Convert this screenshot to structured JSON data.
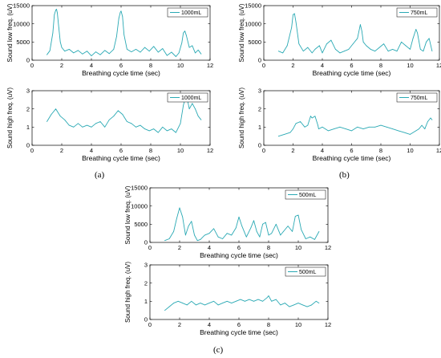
{
  "colors": {
    "series": "#2aa9b4",
    "axis": "#000000",
    "legend_border": "#000000"
  },
  "panel_labels": [
    "(a)",
    "(b)",
    "(c)"
  ],
  "chart_data": [
    {
      "type": "line",
      "panel": "a",
      "row": "low",
      "xlabel": "Breathing cycle time (sec)",
      "ylabel": "Sound low freq. (uV)",
      "xlim": [
        0,
        12
      ],
      "ylim": [
        0,
        15000
      ],
      "xticks": [
        0,
        2,
        4,
        6,
        8,
        10,
        12
      ],
      "yticks": [
        0,
        5000,
        10000,
        15000
      ],
      "legend": "top-right",
      "series": [
        {
          "name": "1000mL",
          "x": [
            1.0,
            1.2,
            1.4,
            1.5,
            1.6,
            1.65,
            1.7,
            1.8,
            1.9,
            2.0,
            2.2,
            2.5,
            2.8,
            3.1,
            3.4,
            3.7,
            4.0,
            4.3,
            4.6,
            4.9,
            5.2,
            5.5,
            5.7,
            5.85,
            5.95,
            6.0,
            6.1,
            6.2,
            6.4,
            6.7,
            7.0,
            7.3,
            7.6,
            7.9,
            8.2,
            8.5,
            8.8,
            9.1,
            9.4,
            9.7,
            9.9,
            10.1,
            10.2,
            10.3,
            10.4,
            10.6,
            10.8,
            11.0,
            11.2,
            11.4
          ],
          "y": [
            1500,
            2600,
            7500,
            12500,
            13800,
            14000,
            13000,
            9000,
            5000,
            3500,
            2500,
            3000,
            2000,
            2700,
            1700,
            2500,
            1200,
            2300,
            1500,
            2700,
            1800,
            3000,
            6500,
            11500,
            13200,
            13500,
            12000,
            7000,
            3000,
            2300,
            3000,
            2200,
            3500,
            2500,
            3800,
            2200,
            3200,
            1300,
            2200,
            1000,
            2000,
            4800,
            7500,
            8000,
            6800,
            3500,
            4000,
            2000,
            2800,
            1700
          ]
        }
      ]
    },
    {
      "type": "line",
      "panel": "a",
      "row": "high",
      "xlabel": "Breathing cycle time (sec)",
      "ylabel": "Sound high freq. (uV)",
      "xlim": [
        0,
        12
      ],
      "ylim": [
        0,
        3
      ],
      "xticks": [
        0,
        2,
        4,
        6,
        8,
        10,
        12
      ],
      "yticks": [
        0,
        1,
        2,
        3
      ],
      "legend": "top-right",
      "series": [
        {
          "name": "1000mL",
          "x": [
            1.0,
            1.3,
            1.6,
            1.9,
            2.2,
            2.5,
            2.8,
            3.1,
            3.4,
            3.7,
            4.0,
            4.3,
            4.6,
            4.9,
            5.2,
            5.5,
            5.8,
            6.1,
            6.4,
            6.7,
            7.0,
            7.3,
            7.6,
            7.9,
            8.2,
            8.5,
            8.8,
            9.1,
            9.4,
            9.7,
            10.0,
            10.2,
            10.4,
            10.6,
            10.8,
            11.0,
            11.2,
            11.4
          ],
          "y": [
            1.3,
            1.7,
            2.0,
            1.6,
            1.4,
            1.1,
            1.0,
            1.2,
            1.0,
            1.1,
            1.0,
            1.2,
            1.3,
            1.0,
            1.4,
            1.6,
            1.9,
            1.7,
            1.3,
            1.2,
            1.0,
            1.1,
            0.9,
            0.8,
            0.9,
            0.7,
            1.0,
            0.8,
            0.9,
            0.7,
            1.2,
            2.2,
            2.8,
            2.0,
            2.3,
            2.0,
            1.6,
            1.4
          ]
        }
      ]
    },
    {
      "type": "line",
      "panel": "b",
      "row": "low",
      "xlabel": "Breathing cycle time (sec)",
      "ylabel": "Sound low freq. (uV)",
      "xlim": [
        0,
        12
      ],
      "ylim": [
        0,
        15000
      ],
      "xticks": [
        0,
        2,
        4,
        6,
        8,
        10,
        12
      ],
      "yticks": [
        0,
        5000,
        10000,
        15000
      ],
      "legend": "top-right",
      "series": [
        {
          "name": "750mL",
          "x": [
            1.0,
            1.3,
            1.6,
            1.9,
            2.0,
            2.1,
            2.2,
            2.4,
            2.7,
            3.0,
            3.3,
            3.5,
            3.8,
            4.0,
            4.3,
            4.6,
            4.9,
            5.2,
            5.5,
            5.8,
            6.1,
            6.4,
            6.6,
            6.7,
            6.8,
            7.0,
            7.3,
            7.6,
            7.9,
            8.2,
            8.5,
            8.8,
            9.1,
            9.4,
            9.7,
            10.0,
            10.2,
            10.4,
            10.5,
            10.7,
            10.9,
            11.1,
            11.3,
            11.5
          ],
          "y": [
            2500,
            2000,
            4000,
            9000,
            12500,
            12800,
            10500,
            4500,
            2500,
            3500,
            2000,
            3000,
            4000,
            2000,
            4500,
            5500,
            3000,
            2000,
            2500,
            3000,
            4500,
            6000,
            9800,
            8000,
            5000,
            4000,
            3000,
            2500,
            3500,
            4500,
            2500,
            3000,
            2500,
            5000,
            4000,
            3000,
            6000,
            8500,
            7500,
            3000,
            2500,
            5000,
            6000,
            2500
          ]
        }
      ]
    },
    {
      "type": "line",
      "panel": "b",
      "row": "high",
      "xlabel": "Breathing cycle time (sec)",
      "ylabel": "Sound high freq. (uV)",
      "xlim": [
        0,
        12
      ],
      "ylim": [
        0,
        3
      ],
      "xticks": [
        0,
        2,
        4,
        6,
        8,
        10,
        12
      ],
      "yticks": [
        0,
        1,
        2,
        3
      ],
      "legend": "top-right",
      "series": [
        {
          "name": "750mL",
          "x": [
            1.0,
            1.4,
            1.8,
            2.0,
            2.2,
            2.5,
            2.8,
            3.0,
            3.2,
            3.3,
            3.5,
            3.7,
            3.75,
            4.0,
            4.4,
            4.8,
            5.2,
            5.6,
            6.0,
            6.4,
            6.8,
            7.2,
            7.6,
            8.0,
            8.4,
            8.8,
            9.2,
            9.6,
            10.0,
            10.4,
            10.6,
            10.8,
            11.0,
            11.2,
            11.4,
            11.5
          ],
          "y": [
            0.5,
            0.6,
            0.7,
            0.9,
            1.2,
            1.3,
            1.0,
            1.1,
            1.6,
            1.5,
            1.6,
            1.1,
            0.9,
            1.0,
            0.8,
            0.9,
            1.0,
            0.9,
            0.8,
            1.0,
            0.9,
            1.0,
            1.0,
            1.1,
            1.0,
            0.9,
            0.8,
            0.7,
            0.6,
            0.8,
            0.9,
            1.1,
            0.9,
            1.3,
            1.5,
            1.4
          ]
        }
      ]
    },
    {
      "type": "line",
      "panel": "c",
      "row": "low",
      "xlabel": "Breathing cycle time (sec)",
      "ylabel": "Sound low freq. (uV)",
      "xlim": [
        0,
        12
      ],
      "ylim": [
        0,
        15000
      ],
      "xticks": [
        0,
        2,
        4,
        6,
        8,
        10,
        12
      ],
      "yticks": [
        0,
        5000,
        10000,
        15000
      ],
      "legend": "top-right",
      "series": [
        {
          "name": "500mL",
          "x": [
            1.0,
            1.3,
            1.6,
            1.8,
            2.0,
            2.2,
            2.4,
            2.6,
            2.8,
            3.0,
            3.2,
            3.4,
            3.7,
            4.0,
            4.3,
            4.6,
            4.9,
            5.2,
            5.5,
            5.8,
            6.0,
            6.2,
            6.5,
            6.8,
            7.0,
            7.2,
            7.4,
            7.6,
            7.8,
            8.0,
            8.2,
            8.5,
            8.8,
            9.0,
            9.3,
            9.6,
            9.8,
            10.0,
            10.2,
            10.5,
            10.8,
            11.1,
            11.4
          ],
          "y": [
            500,
            1000,
            3000,
            6500,
            9500,
            7000,
            2000,
            4500,
            5800,
            2000,
            500,
            800,
            2000,
            2500,
            3800,
            1500,
            1000,
            2500,
            2000,
            4000,
            7000,
            4500,
            1500,
            4000,
            6000,
            3000,
            1500,
            5000,
            5500,
            2000,
            2500,
            5000,
            2000,
            3000,
            4500,
            3000,
            7200,
            7500,
            3500,
            1000,
            1500,
            800,
            3000
          ]
        }
      ]
    },
    {
      "type": "line",
      "panel": "c",
      "row": "high",
      "xlabel": "Breathing cycle time (sec)",
      "ylabel": "Sound high freq. (uV)",
      "xlim": [
        0,
        12
      ],
      "ylim": [
        0,
        3
      ],
      "xticks": [
        0,
        2,
        4,
        6,
        8,
        10,
        12
      ],
      "yticks": [
        0,
        1,
        2,
        3
      ],
      "legend": "top-right",
      "series": [
        {
          "name": "500mL",
          "x": [
            1.0,
            1.3,
            1.6,
            1.9,
            2.2,
            2.5,
            2.8,
            3.1,
            3.4,
            3.7,
            4.0,
            4.3,
            4.6,
            4.9,
            5.2,
            5.5,
            5.8,
            6.1,
            6.4,
            6.7,
            7.0,
            7.3,
            7.6,
            7.9,
            8.0,
            8.2,
            8.5,
            8.8,
            9.1,
            9.4,
            9.7,
            10.0,
            10.3,
            10.6,
            10.9,
            11.2,
            11.4
          ],
          "y": [
            0.5,
            0.7,
            0.9,
            1.0,
            0.9,
            0.8,
            1.0,
            0.8,
            0.9,
            0.8,
            0.9,
            1.0,
            0.8,
            0.9,
            1.0,
            0.9,
            1.0,
            1.1,
            1.0,
            1.1,
            1.0,
            1.1,
            1.0,
            1.2,
            1.3,
            1.0,
            1.1,
            0.8,
            0.9,
            0.7,
            0.8,
            0.9,
            0.8,
            0.7,
            0.8,
            1.0,
            0.9
          ]
        }
      ]
    }
  ]
}
